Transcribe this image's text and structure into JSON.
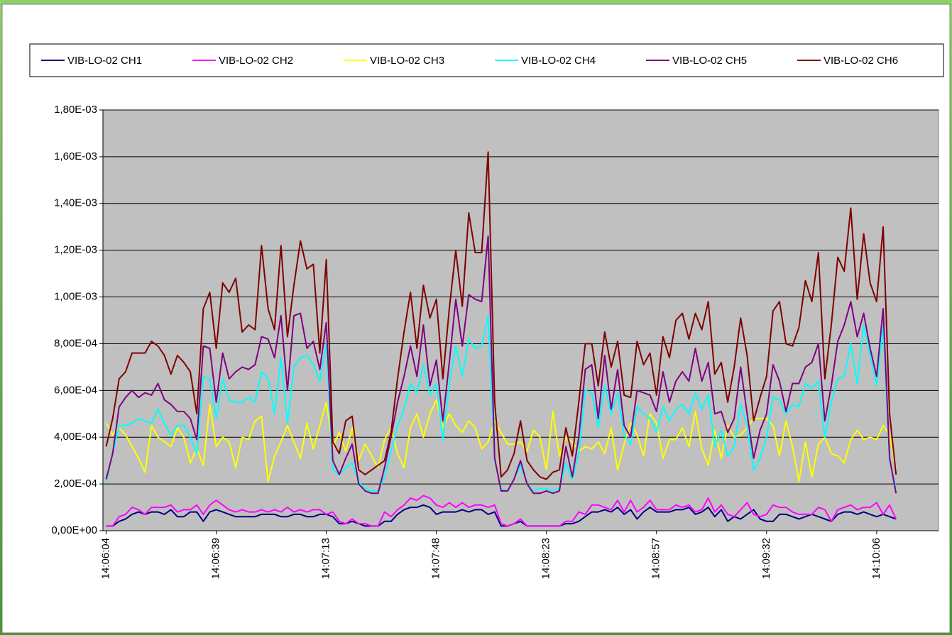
{
  "chart_data": {
    "type": "line",
    "categories": [
      "14:06:04",
      null,
      null,
      null,
      null,
      null,
      null,
      null,
      null,
      null,
      null,
      null,
      null,
      null,
      null,
      null,
      null,
      "14:06:39",
      null,
      null,
      null,
      null,
      null,
      null,
      null,
      null,
      null,
      null,
      null,
      null,
      null,
      null,
      null,
      null,
      "14:07:13",
      null,
      null,
      null,
      null,
      null,
      null,
      null,
      null,
      null,
      null,
      null,
      null,
      null,
      null,
      null,
      null,
      "14:07:48",
      null,
      null,
      null,
      null,
      null,
      null,
      null,
      null,
      null,
      null,
      null,
      null,
      null,
      null,
      null,
      null,
      "14:08:23",
      null,
      null,
      null,
      null,
      null,
      null,
      null,
      null,
      null,
      null,
      null,
      null,
      null,
      null,
      null,
      null,
      "14:08:57",
      null,
      null,
      null,
      null,
      null,
      null,
      null,
      null,
      null,
      null,
      null,
      null,
      null,
      null,
      null,
      null,
      "14:09:32",
      null,
      null,
      null,
      null,
      null,
      null,
      null,
      null,
      null,
      null,
      null,
      null,
      null,
      null,
      null,
      null,
      "14:10:06",
      null,
      null,
      null
    ],
    "ylim": [
      0,
      0.0018
    ],
    "yticks": [
      {
        "value": 0,
        "label": "0,00E+00"
      },
      {
        "value": 0.0002,
        "label": "2,00E-04"
      },
      {
        "value": 0.0004,
        "label": "4,00E-04"
      },
      {
        "value": 0.0006,
        "label": "6,00E-04"
      },
      {
        "value": 0.0008,
        "label": "8,00E-04"
      },
      {
        "value": 0.001,
        "label": "1,00E-03"
      },
      {
        "value": 0.0012,
        "label": "1,20E-03"
      },
      {
        "value": 0.0014,
        "label": "1,40E-03"
      },
      {
        "value": 0.0016,
        "label": "1,60E-03"
      },
      {
        "value": 0.0018,
        "label": "1,80E-03"
      }
    ],
    "grid": true,
    "legend": "top",
    "series": [
      {
        "name": "VIB-LO-02 CH1",
        "color": "#000080",
        "values": [
          2e-05,
          2e-05,
          4e-05,
          5e-05,
          7e-05,
          8e-05,
          7e-05,
          8e-05,
          8e-05,
          7e-05,
          9e-05,
          6e-05,
          6e-05,
          8e-05,
          8e-05,
          4e-05,
          8e-05,
          9e-05,
          8e-05,
          7e-05,
          6e-05,
          6e-05,
          6e-05,
          6e-05,
          7e-05,
          7e-05,
          7e-05,
          6e-05,
          6e-05,
          7e-05,
          7e-05,
          6e-05,
          6e-05,
          7e-05,
          7e-05,
          6e-05,
          3e-05,
          3e-05,
          4e-05,
          3e-05,
          2e-05,
          2e-05,
          2e-05,
          4e-05,
          4e-05,
          7e-05,
          9e-05,
          0.0001,
          0.0001,
          0.00011,
          0.0001,
          7e-05,
          8e-05,
          8e-05,
          8e-05,
          9e-05,
          8e-05,
          9e-05,
          9e-05,
          7e-05,
          8e-05,
          2e-05,
          2e-05,
          3e-05,
          4e-05,
          2e-05,
          2e-05,
          2e-05,
          2e-05,
          2e-05,
          2e-05,
          3e-05,
          3e-05,
          4e-05,
          6e-05,
          8e-05,
          8e-05,
          9e-05,
          8e-05,
          0.0001,
          7e-05,
          9e-05,
          5e-05,
          8e-05,
          0.0001,
          8e-05,
          8e-05,
          8e-05,
          9e-05,
          9e-05,
          0.0001,
          7e-05,
          8e-05,
          0.0001,
          6e-05,
          9e-05,
          4e-05,
          6e-05,
          5e-05,
          7e-05,
          9e-05,
          5e-05,
          4e-05,
          4e-05,
          7e-05,
          7e-05,
          6e-05,
          5e-05,
          6e-05,
          7e-05,
          6e-05,
          5e-05,
          4e-05,
          7e-05,
          8e-05,
          8e-05,
          7e-05,
          8e-05,
          7e-05,
          6e-05,
          7e-05,
          6e-05,
          5e-05
        ]
      },
      {
        "name": "VIB-LO-02 CH2",
        "color": "#ff00ff",
        "values": [
          2e-05,
          2e-05,
          6e-05,
          7e-05,
          0.0001,
          9e-05,
          7e-05,
          0.0001,
          0.0001,
          0.0001,
          0.00011,
          8e-05,
          9e-05,
          9e-05,
          0.00011,
          7e-05,
          0.00011,
          0.00013,
          0.00011,
          9e-05,
          8e-05,
          9e-05,
          8e-05,
          8e-05,
          9e-05,
          8e-05,
          9e-05,
          8e-05,
          0.0001,
          8e-05,
          9e-05,
          8e-05,
          9e-05,
          9e-05,
          7e-05,
          8e-05,
          4e-05,
          3e-05,
          5e-05,
          3e-05,
          3e-05,
          2e-05,
          2e-05,
          8e-05,
          6e-05,
          9e-05,
          0.00011,
          0.00014,
          0.00013,
          0.00015,
          0.00014,
          0.00011,
          0.0001,
          0.00012,
          0.0001,
          0.00012,
          0.0001,
          0.00011,
          0.00011,
          0.0001,
          0.00011,
          3e-05,
          2e-05,
          3e-05,
          5e-05,
          2e-05,
          2e-05,
          2e-05,
          2e-05,
          2e-05,
          2e-05,
          4e-05,
          4e-05,
          8e-05,
          7e-05,
          0.00011,
          0.00011,
          0.0001,
          9e-05,
          0.00013,
          8e-05,
          0.00013,
          8e-05,
          0.0001,
          0.00013,
          9e-05,
          9e-05,
          9e-05,
          0.00011,
          0.0001,
          0.00011,
          8e-05,
          9e-05,
          0.00014,
          8e-05,
          0.00011,
          7e-05,
          6e-05,
          9e-05,
          0.00012,
          7e-05,
          6e-05,
          7e-05,
          0.00011,
          0.0001,
          0.0001,
          8e-05,
          7e-05,
          7e-05,
          7e-05,
          0.0001,
          9e-05,
          4e-05,
          9e-05,
          0.0001,
          0.00011,
          9e-05,
          0.0001,
          0.0001,
          0.00012,
          7e-05,
          0.00011,
          5e-05
        ]
      },
      {
        "name": "VIB-LO-02 CH3",
        "color": "#ffff00",
        "values": [
          0.00046,
          0.00041,
          0.00044,
          0.00041,
          0.00036,
          0.00031,
          0.00025,
          0.00045,
          0.0004,
          0.00038,
          0.00036,
          0.00044,
          0.0004,
          0.00029,
          0.00035,
          0.00028,
          0.00054,
          0.00036,
          0.0004,
          0.00038,
          0.00027,
          0.0004,
          0.00039,
          0.00047,
          0.00049,
          0.00021,
          0.00032,
          0.00038,
          0.00045,
          0.00038,
          0.00031,
          0.00046,
          0.00035,
          0.00045,
          0.00055,
          0.00036,
          0.00042,
          0.00034,
          0.00044,
          0.0003,
          0.00037,
          0.00032,
          0.00027,
          0.00039,
          0.00044,
          0.00033,
          0.00027,
          0.00044,
          0.0005,
          0.0004,
          0.0005,
          0.00056,
          0.00044,
          0.0005,
          0.00045,
          0.00042,
          0.00047,
          0.00044,
          0.00035,
          0.00038,
          0.00047,
          0.00042,
          0.00037,
          0.00037,
          0.00038,
          0.00034,
          0.00043,
          0.0004,
          0.00026,
          0.00051,
          0.00032,
          0.0004,
          0.00038,
          0.00034,
          0.00036,
          0.00035,
          0.00038,
          0.00033,
          0.00044,
          0.00026,
          0.00037,
          0.00046,
          0.00041,
          0.00032,
          0.0005,
          0.00046,
          0.00031,
          0.00039,
          0.00039,
          0.00044,
          0.00036,
          0.00051,
          0.00035,
          0.00028,
          0.00043,
          0.00031,
          0.00045,
          0.0004,
          0.00041,
          0.00044,
          0.00048,
          0.00048,
          0.00048,
          0.00045,
          0.00032,
          0.00047,
          0.00036,
          0.00021,
          0.00038,
          0.00023,
          0.00037,
          0.0004,
          0.00033,
          0.00032,
          0.00029,
          0.00039,
          0.00043,
          0.00039,
          0.0004,
          0.00039,
          0.00045,
          0.00041,
          0.00026
        ]
      },
      {
        "name": "VIB-LO-02 CH4",
        "color": "#00ffff",
        "values": [
          0.00021,
          0.00033,
          0.00045,
          0.00045,
          0.00046,
          0.00048,
          0.00047,
          0.00046,
          0.00052,
          0.00046,
          0.00041,
          0.00045,
          0.00045,
          0.0004,
          0.00033,
          0.00066,
          0.00065,
          0.00048,
          0.00065,
          0.00056,
          0.00055,
          0.00055,
          0.00057,
          0.00055,
          0.00068,
          0.00065,
          0.0005,
          0.00074,
          0.00046,
          0.0007,
          0.00074,
          0.00075,
          0.00071,
          0.00064,
          0.0008,
          0.00026,
          0.00024,
          0.00027,
          0.00029,
          0.00021,
          0.00018,
          0.00017,
          0.00017,
          0.00023,
          0.00034,
          0.00045,
          0.00052,
          0.00063,
          0.00059,
          0.00071,
          0.00058,
          0.00063,
          0.00039,
          0.00063,
          0.00079,
          0.00066,
          0.00082,
          0.00078,
          0.00079,
          0.00092,
          0.0003,
          0.00018,
          0.00017,
          0.00022,
          0.00028,
          0.0002,
          0.00017,
          0.00018,
          0.00018,
          0.00017,
          0.00018,
          0.00029,
          0.00022,
          0.00033,
          0.0006,
          0.00059,
          0.00044,
          0.00062,
          0.0005,
          0.00059,
          0.00041,
          0.00037,
          0.00053,
          0.0005,
          0.00048,
          0.00042,
          0.00053,
          0.00047,
          0.00052,
          0.00054,
          0.0005,
          0.00059,
          0.00052,
          0.00058,
          0.00036,
          0.00043,
          0.00032,
          0.00036,
          0.00054,
          0.00045,
          0.00026,
          0.00031,
          0.0004,
          0.00057,
          0.00056,
          0.0005,
          0.00054,
          0.00053,
          0.00063,
          0.00061,
          0.00064,
          0.0004,
          0.00055,
          0.00065,
          0.00066,
          0.0008,
          0.00063,
          0.00088,
          0.00075,
          0.00062,
          0.00088,
          0.0003,
          0.00018
        ]
      },
      {
        "name": "VIB-LO-02 CH5",
        "color": "#800080",
        "values": [
          0.00022,
          0.00033,
          0.00053,
          0.00057,
          0.0006,
          0.00057,
          0.00059,
          0.00058,
          0.00063,
          0.00056,
          0.00054,
          0.00051,
          0.00051,
          0.00048,
          0.00039,
          0.00079,
          0.00078,
          0.00055,
          0.00076,
          0.00065,
          0.00068,
          0.0007,
          0.00069,
          0.00071,
          0.00083,
          0.00082,
          0.00074,
          0.00092,
          0.0006,
          0.00092,
          0.00093,
          0.00078,
          0.00081,
          0.00069,
          0.00089,
          0.0003,
          0.00024,
          0.00031,
          0.00037,
          0.0002,
          0.00017,
          0.00016,
          0.00016,
          0.00027,
          0.0004,
          0.00055,
          0.00066,
          0.00079,
          0.00066,
          0.00088,
          0.00062,
          0.00073,
          0.00047,
          0.00072,
          0.00099,
          0.00079,
          0.00101,
          0.00099,
          0.00098,
          0.00126,
          0.00031,
          0.00017,
          0.00017,
          0.00022,
          0.0003,
          0.0002,
          0.00016,
          0.00016,
          0.00017,
          0.00016,
          0.00017,
          0.00036,
          0.00023,
          0.0004,
          0.00069,
          0.00071,
          0.00048,
          0.00075,
          0.00052,
          0.00069,
          0.00045,
          0.0004,
          0.0006,
          0.00059,
          0.00058,
          0.00051,
          0.00068,
          0.00055,
          0.00064,
          0.00068,
          0.00064,
          0.00078,
          0.00064,
          0.00072,
          0.0005,
          0.00051,
          0.00042,
          0.00048,
          0.0007,
          0.0005,
          0.00031,
          0.00043,
          0.0005,
          0.00071,
          0.00064,
          0.00051,
          0.00063,
          0.00063,
          0.0007,
          0.00072,
          0.0008,
          0.00047,
          0.00062,
          0.00081,
          0.00088,
          0.00098,
          0.00083,
          0.00093,
          0.00078,
          0.00066,
          0.00095,
          0.00031,
          0.00016
        ]
      },
      {
        "name": "VIB-LO-02 CH6",
        "color": "#800000",
        "values": [
          0.00036,
          0.00048,
          0.00065,
          0.00068,
          0.00076,
          0.00076,
          0.00076,
          0.00081,
          0.00079,
          0.00075,
          0.00067,
          0.00075,
          0.00072,
          0.00068,
          0.0005,
          0.00095,
          0.00102,
          0.00078,
          0.00106,
          0.00102,
          0.00108,
          0.00085,
          0.00088,
          0.00086,
          0.00122,
          0.00095,
          0.00086,
          0.00122,
          0.00083,
          0.00105,
          0.00124,
          0.00112,
          0.00114,
          0.00076,
          0.00116,
          0.00038,
          0.00033,
          0.00047,
          0.00049,
          0.00026,
          0.00024,
          0.00026,
          0.00028,
          0.0003,
          0.00042,
          0.00065,
          0.00085,
          0.00102,
          0.00078,
          0.00105,
          0.00091,
          0.00099,
          0.00065,
          0.00095,
          0.0012,
          0.00096,
          0.00136,
          0.00119,
          0.00119,
          0.00162,
          0.00055,
          0.00023,
          0.00026,
          0.00033,
          0.00047,
          0.0003,
          0.00026,
          0.00023,
          0.00022,
          0.00025,
          0.00026,
          0.00044,
          0.00032,
          0.00055,
          0.0008,
          0.0008,
          0.00062,
          0.00085,
          0.0007,
          0.00081,
          0.00058,
          0.00057,
          0.00081,
          0.00071,
          0.00076,
          0.00058,
          0.00083,
          0.00074,
          0.0009,
          0.00093,
          0.00082,
          0.00093,
          0.00086,
          0.00098,
          0.00067,
          0.00072,
          0.00055,
          0.0007,
          0.00091,
          0.00075,
          0.00047,
          0.00057,
          0.00066,
          0.00094,
          0.00098,
          0.0008,
          0.00079,
          0.00087,
          0.00107,
          0.00098,
          0.00119,
          0.00065,
          0.00088,
          0.00117,
          0.00111,
          0.00138,
          0.00099,
          0.00127,
          0.00106,
          0.00098,
          0.0013,
          0.0005,
          0.00024
        ]
      }
    ]
  }
}
